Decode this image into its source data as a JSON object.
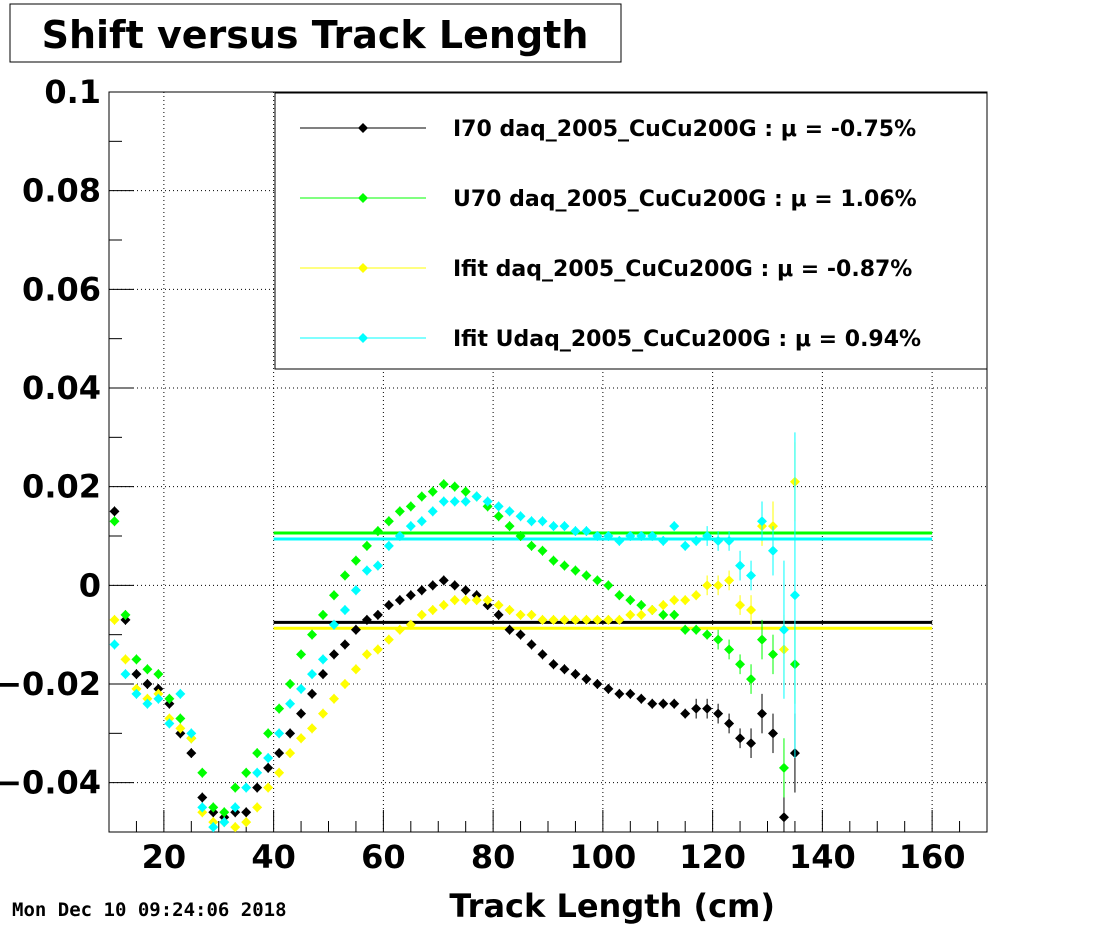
{
  "chart_data": {
    "type": "scatter",
    "title": "Shift versus Track Length",
    "xlabel": "Track Length (cm)",
    "ylabel": "",
    "xlim": [
      10,
      170
    ],
    "ylim": [
      -0.05,
      0.1
    ],
    "x_major_ticks": [
      20,
      40,
      60,
      80,
      100,
      120,
      140,
      160
    ],
    "x_tick_labels": [
      "20",
      "40",
      "60",
      "80",
      "100",
      "120",
      "140",
      "160"
    ],
    "y_major_ticks": [
      -0.04,
      -0.02,
      0,
      0.02,
      0.04,
      0.06,
      0.08,
      0.1
    ],
    "y_tick_labels": [
      "−0.04",
      "−0.02",
      "0",
      "0.02",
      "0.04",
      "0.06",
      "0.08",
      "0.1"
    ],
    "grid": true,
    "legend_position": "top-right",
    "timestamp": "Mon Dec 10 09:24:06 2018",
    "x": [
      11,
      13,
      15,
      17,
      19,
      21,
      23,
      25,
      27,
      29,
      31,
      33,
      35,
      37,
      39,
      41,
      43,
      45,
      47,
      49,
      51,
      53,
      55,
      57,
      59,
      61,
      63,
      65,
      67,
      69,
      71,
      73,
      75,
      77,
      79,
      81,
      83,
      85,
      87,
      89,
      91,
      93,
      95,
      97,
      99,
      101,
      103,
      105,
      107,
      109,
      111,
      113,
      115,
      117,
      119,
      121,
      123,
      125,
      127,
      129,
      131,
      133,
      135
    ],
    "series": [
      {
        "name": "I70  daq_2005_CuCu200G",
        "mu_label": "μ = -0.75%",
        "color": "#000000",
        "fit_level": -0.0075,
        "fit_range": [
          40,
          160
        ],
        "y": [
          0.015,
          -0.007,
          -0.018,
          -0.02,
          -0.021,
          -0.024,
          -0.03,
          -0.034,
          -0.043,
          -0.046,
          -0.047,
          -0.046,
          -0.046,
          -0.041,
          -0.037,
          -0.034,
          -0.03,
          -0.026,
          -0.022,
          -0.018,
          -0.014,
          -0.012,
          -0.009,
          -0.007,
          -0.006,
          -0.004,
          -0.003,
          -0.002,
          -0.001,
          0.0,
          0.001,
          0.0,
          -0.001,
          -0.002,
          -0.004,
          -0.006,
          -0.009,
          -0.01,
          -0.012,
          -0.014,
          -0.016,
          -0.017,
          -0.018,
          -0.019,
          -0.02,
          -0.021,
          -0.022,
          -0.022,
          -0.023,
          -0.024,
          -0.024,
          -0.024,
          -0.026,
          -0.025,
          -0.025,
          -0.026,
          -0.028,
          -0.031,
          -0.032,
          -0.026,
          -0.03,
          -0.047,
          -0.034
        ],
        "err": [
          0.001,
          0.001,
          0.001,
          0.001,
          0.001,
          0.001,
          0.001,
          0.001,
          0.001,
          0.001,
          0.001,
          0.001,
          0.001,
          0.001,
          0.001,
          0.001,
          0.001,
          0.001,
          0.001,
          0.001,
          0.001,
          0.001,
          0.001,
          0.001,
          0.001,
          0.001,
          0.001,
          0.001,
          0.001,
          0.001,
          0.001,
          0.001,
          0.001,
          0.001,
          0.001,
          0.001,
          0.001,
          0.001,
          0.001,
          0.001,
          0.001,
          0.001,
          0.001,
          0.001,
          0.001,
          0.001,
          0.001,
          0.001,
          0.001,
          0.001,
          0.001,
          0.001,
          0.001,
          0.002,
          0.002,
          0.002,
          0.002,
          0.002,
          0.003,
          0.004,
          0.004,
          0.007,
          0.008
        ]
      },
      {
        "name": "U70  daq_2005_CuCu200G",
        "mu_label": "μ =  1.06%",
        "color": "#00ff00",
        "fit_level": 0.0106,
        "fit_range": [
          40,
          160
        ],
        "y": [
          0.013,
          -0.006,
          -0.015,
          -0.017,
          -0.018,
          -0.023,
          -0.027,
          -0.031,
          -0.038,
          -0.045,
          -0.046,
          -0.041,
          -0.038,
          -0.034,
          -0.03,
          -0.025,
          -0.02,
          -0.014,
          -0.01,
          -0.006,
          -0.002,
          0.002,
          0.005,
          0.008,
          0.011,
          0.013,
          0.015,
          0.016,
          0.018,
          0.019,
          0.0205,
          0.02,
          0.019,
          0.018,
          0.016,
          0.014,
          0.012,
          0.01,
          0.008,
          0.007,
          0.005,
          0.004,
          0.003,
          0.002,
          0.001,
          0.0,
          -0.002,
          -0.003,
          -0.004,
          -0.005,
          -0.006,
          -0.006,
          -0.009,
          -0.009,
          -0.01,
          -0.011,
          -0.013,
          -0.016,
          -0.019,
          -0.011,
          -0.014,
          -0.037,
          -0.016
        ],
        "err": [
          0.001,
          0.001,
          0.001,
          0.001,
          0.001,
          0.001,
          0.001,
          0.001,
          0.001,
          0.001,
          0.001,
          0.001,
          0.001,
          0.001,
          0.001,
          0.001,
          0.001,
          0.001,
          0.001,
          0.001,
          0.001,
          0.001,
          0.001,
          0.001,
          0.001,
          0.001,
          0.001,
          0.001,
          0.001,
          0.001,
          0.001,
          0.001,
          0.001,
          0.001,
          0.001,
          0.001,
          0.001,
          0.001,
          0.001,
          0.001,
          0.001,
          0.001,
          0.001,
          0.001,
          0.001,
          0.001,
          0.001,
          0.001,
          0.001,
          0.001,
          0.001,
          0.001,
          0.001,
          0.001,
          0.001,
          0.002,
          0.002,
          0.002,
          0.003,
          0.004,
          0.004,
          0.006,
          0.008
        ]
      },
      {
        "name": "Ifit daq_2005_CuCu200G",
        "mu_label": "μ = -0.87%",
        "color": "#ffff00",
        "fit_level": -0.0087,
        "fit_range": [
          40,
          160
        ],
        "y": [
          -0.007,
          -0.015,
          -0.021,
          -0.023,
          -0.022,
          -0.027,
          -0.029,
          -0.031,
          -0.046,
          -0.048,
          -0.048,
          -0.049,
          -0.048,
          -0.045,
          -0.041,
          -0.038,
          -0.034,
          -0.031,
          -0.029,
          -0.026,
          -0.023,
          -0.02,
          -0.017,
          -0.014,
          -0.013,
          -0.011,
          -0.009,
          -0.008,
          -0.006,
          -0.005,
          -0.004,
          -0.003,
          -0.003,
          -0.003,
          -0.003,
          -0.004,
          -0.005,
          -0.006,
          -0.006,
          -0.007,
          -0.007,
          -0.007,
          -0.007,
          -0.007,
          -0.007,
          -0.007,
          -0.007,
          -0.006,
          -0.006,
          -0.005,
          -0.004,
          -0.003,
          -0.003,
          -0.002,
          0.0,
          0.0,
          0.001,
          -0.004,
          -0.005,
          0.012,
          0.012,
          -0.013,
          0.021
        ],
        "err": [
          0.001,
          0.001,
          0.001,
          0.001,
          0.001,
          0.001,
          0.001,
          0.001,
          0.001,
          0.001,
          0.001,
          0.001,
          0.001,
          0.001,
          0.001,
          0.001,
          0.001,
          0.001,
          0.001,
          0.001,
          0.001,
          0.001,
          0.001,
          0.001,
          0.001,
          0.001,
          0.001,
          0.001,
          0.001,
          0.001,
          0.001,
          0.001,
          0.001,
          0.001,
          0.001,
          0.001,
          0.001,
          0.001,
          0.001,
          0.001,
          0.001,
          0.001,
          0.001,
          0.001,
          0.001,
          0.001,
          0.001,
          0.001,
          0.001,
          0.001,
          0.001,
          0.001,
          0.001,
          0.001,
          0.002,
          0.002,
          0.002,
          0.002,
          0.003,
          0.004,
          0.005,
          0.007,
          0.008
        ]
      },
      {
        "name": "Ifit Udaq_2005_CuCu200G",
        "mu_label": "μ =  0.94%",
        "color": "#00ffff",
        "fit_level": 0.0094,
        "fit_range": [
          40,
          160
        ],
        "y": [
          -0.012,
          -0.018,
          -0.022,
          -0.024,
          -0.023,
          -0.028,
          -0.022,
          -0.03,
          -0.045,
          -0.049,
          -0.048,
          -0.045,
          -0.041,
          -0.038,
          -0.035,
          -0.03,
          -0.024,
          -0.021,
          -0.018,
          -0.015,
          -0.008,
          -0.005,
          -0.001,
          0.003,
          0.004,
          0.008,
          0.01,
          0.012,
          0.013,
          0.015,
          0.017,
          0.017,
          0.017,
          0.018,
          0.017,
          0.016,
          0.015,
          0.014,
          0.013,
          0.013,
          0.012,
          0.012,
          0.011,
          0.011,
          0.01,
          0.01,
          0.009,
          0.01,
          0.01,
          0.01,
          0.009,
          0.012,
          0.008,
          0.009,
          0.01,
          0.009,
          0.009,
          0.004,
          0.002,
          0.013,
          0.007,
          -0.009,
          -0.002
        ],
        "err": [
          0.001,
          0.001,
          0.001,
          0.001,
          0.001,
          0.001,
          0.001,
          0.001,
          0.001,
          0.001,
          0.001,
          0.001,
          0.001,
          0.001,
          0.001,
          0.001,
          0.001,
          0.001,
          0.001,
          0.001,
          0.001,
          0.001,
          0.001,
          0.001,
          0.001,
          0.001,
          0.001,
          0.001,
          0.001,
          0.001,
          0.001,
          0.001,
          0.001,
          0.001,
          0.001,
          0.001,
          0.001,
          0.001,
          0.001,
          0.001,
          0.001,
          0.001,
          0.001,
          0.001,
          0.001,
          0.001,
          0.001,
          0.001,
          0.001,
          0.001,
          0.001,
          0.001,
          0.001,
          0.001,
          0.002,
          0.002,
          0.002,
          0.003,
          0.003,
          0.004,
          0.005,
          0.014,
          0.033
        ]
      }
    ]
  }
}
